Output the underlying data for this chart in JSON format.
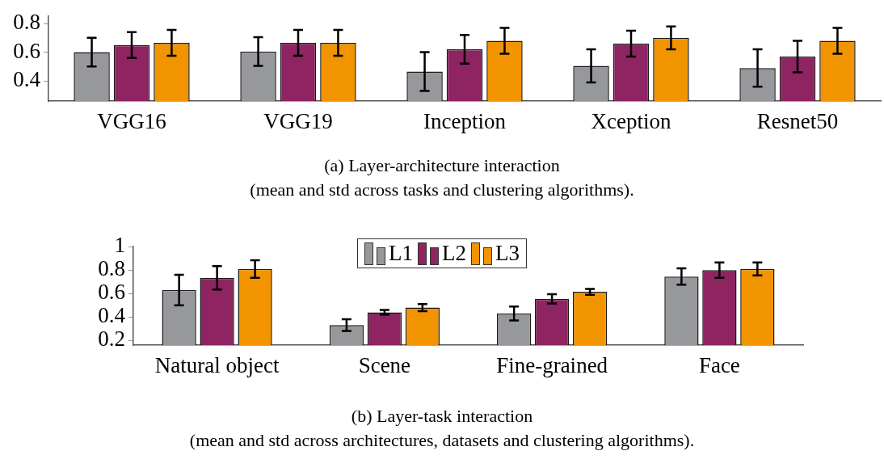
{
  "chart_data": [
    {
      "type": "bar",
      "categories": [
        "VGG16",
        "VGG19",
        "Inception",
        "Xception",
        "Resnet50"
      ],
      "series": [
        {
          "color": "#97989b",
          "values": [
            0.6,
            0.605,
            0.465,
            0.505,
            0.49
          ],
          "errors": [
            0.1,
            0.1,
            0.135,
            0.115,
            0.13
          ]
        },
        {
          "color": "#8e2461",
          "values": [
            0.65,
            0.665,
            0.62,
            0.66,
            0.57
          ],
          "errors": [
            0.09,
            0.09,
            0.1,
            0.09,
            0.11
          ]
        },
        {
          "color": "#f29400",
          "values": [
            0.665,
            0.665,
            0.68,
            0.7,
            0.68
          ],
          "errors": [
            0.09,
            0.09,
            0.09,
            0.08,
            0.09
          ]
        }
      ],
      "ylim": [
        0.26,
        0.85
      ],
      "yticks": [
        0.4,
        0.6,
        0.8
      ],
      "grid": false,
      "legend": false,
      "annotations": [
        "(a) Layer-architecture interaction",
        "(mean and std across tasks and clustering algorithms)."
      ]
    },
    {
      "type": "bar",
      "categories": [
        "Natural object",
        "Scene",
        "Fine-grained",
        "Face"
      ],
      "series": [
        {
          "name": "L1",
          "color": "#97989b",
          "values": [
            0.63,
            0.33,
            0.43,
            0.745
          ],
          "errors": [
            0.13,
            0.05,
            0.06,
            0.07
          ]
        },
        {
          "name": "L2",
          "color": "#8e2461",
          "values": [
            0.735,
            0.44,
            0.555,
            0.8
          ],
          "errors": [
            0.1,
            0.02,
            0.04,
            0.065
          ]
        },
        {
          "name": "L3",
          "color": "#f29400",
          "values": [
            0.81,
            0.48,
            0.615,
            0.81
          ],
          "errors": [
            0.075,
            0.03,
            0.025,
            0.055
          ]
        }
      ],
      "ylim": [
        0.16,
        1
      ],
      "yticks": [
        0.2,
        0.4,
        0.6,
        0.8,
        1
      ],
      "grid": false,
      "legend": "top",
      "annotations": [
        "(b) Layer-task interaction",
        "(mean and std across architectures, datasets and clustering algorithms)."
      ]
    }
  ]
}
